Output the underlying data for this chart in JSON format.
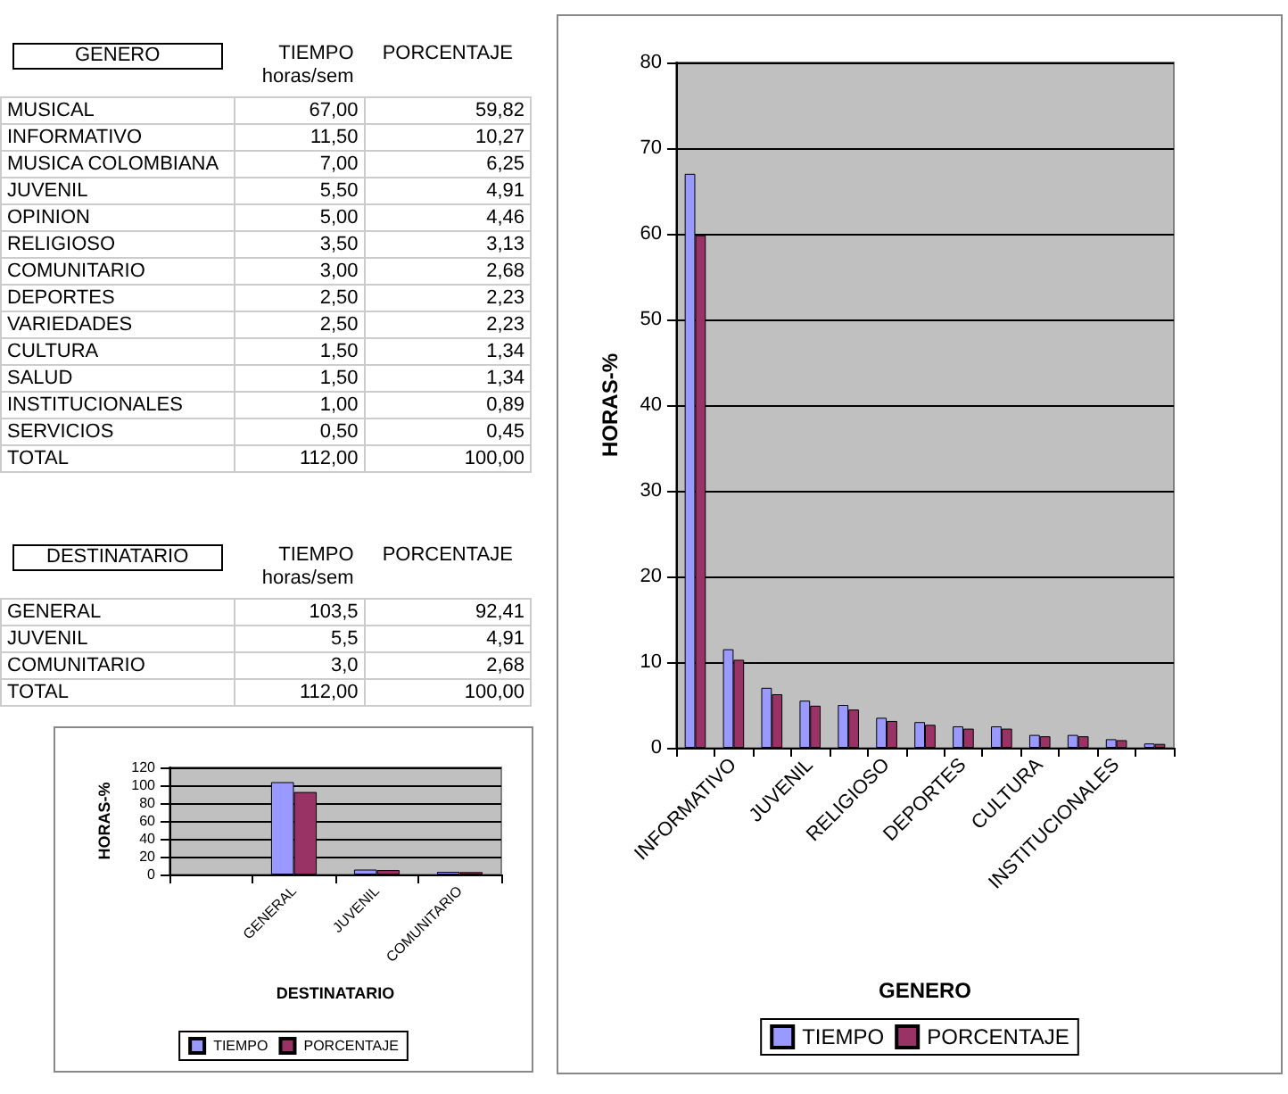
{
  "chart_data": [
    {
      "type": "other",
      "annotations": [
        "GENERO",
        "TIEMPO horas/sem",
        "PORCENTAJE",
        "MUSICAL",
        "67,00",
        "59,82",
        "INFORMATIVO",
        "11,50",
        "10,27",
        "MUSICA COLOMBIANA",
        "7,00",
        "6,25",
        "JUVENIL",
        "5,50",
        "4,91",
        "OPINION",
        "5,00",
        "4,46",
        "RELIGIOSO",
        "3,50",
        "3,13",
        "COMUNITARIO",
        "3,00",
        "2,68",
        "DEPORTES",
        "2,50",
        "2,23",
        "VARIEDADES",
        "2,50",
        "2,23",
        "CULTURA",
        "1,50",
        "1,34",
        "SALUD",
        "1,50",
        "1,34",
        "INSTITUCIONALES",
        "1,00",
        "0,89",
        "SERVICIOS",
        "0,50",
        "0,45",
        "TOTAL",
        "112,00",
        "100,00"
      ]
    },
    {
      "type": "other",
      "annotations": [
        "DESTINATARIO",
        "TIEMPO horas/sem",
        "PORCENTAJE",
        "GENERAL",
        "103,5",
        "92,41",
        "JUVENIL",
        "5,5",
        "4,91",
        "COMUNITARIO",
        "3,0",
        "2,68",
        "TOTAL",
        "112,00",
        "100,00"
      ]
    },
    {
      "type": "bar",
      "xlabel": "DESTINATARIO",
      "ylabel": "HORAS-%",
      "categories": [
        null,
        "GENERAL",
        "JUVENIL",
        "COMUNITARIO"
      ],
      "series": [
        {
          "name": "TIEMPO",
          "color": "#9999ff",
          "values": [
            null,
            103.5,
            5.5,
            3.0
          ]
        },
        {
          "name": "PORCENTAJE",
          "color": "#993366",
          "values": [
            null,
            92.41,
            4.91,
            2.68
          ]
        }
      ],
      "ylim": [
        0,
        120
      ],
      "yticks": [
        0,
        20,
        40,
        60,
        80,
        100,
        120
      ],
      "grid": "y",
      "legend": "bottom"
    },
    {
      "type": "bar",
      "xlabel": "GENERO",
      "ylabel": "HORAS-%",
      "categories": [
        null,
        "INFORMATIVO",
        null,
        "JUVENIL",
        null,
        "RELIGIOSO",
        null,
        "DEPORTES",
        null,
        "CULTURA",
        null,
        "INSTITUCIONALES",
        null
      ],
      "series": [
        {
          "name": "TIEMPO",
          "color": "#9999ff",
          "values": [
            67,
            11.5,
            7,
            5.5,
            5,
            3.5,
            3,
            2.5,
            2.5,
            1.5,
            1.5,
            1,
            0.5
          ]
        },
        {
          "name": "PORCENTAJE",
          "color": "#993366",
          "values": [
            59.82,
            10.27,
            6.25,
            4.91,
            4.46,
            3.13,
            2.68,
            2.23,
            2.23,
            1.34,
            1.34,
            0.89,
            0.45
          ]
        }
      ],
      "ylim": [
        0,
        80
      ],
      "yticks": [
        0,
        10,
        20,
        30,
        40,
        50,
        60,
        70,
        80
      ],
      "grid": "y",
      "legend": "bottom"
    }
  ]
}
